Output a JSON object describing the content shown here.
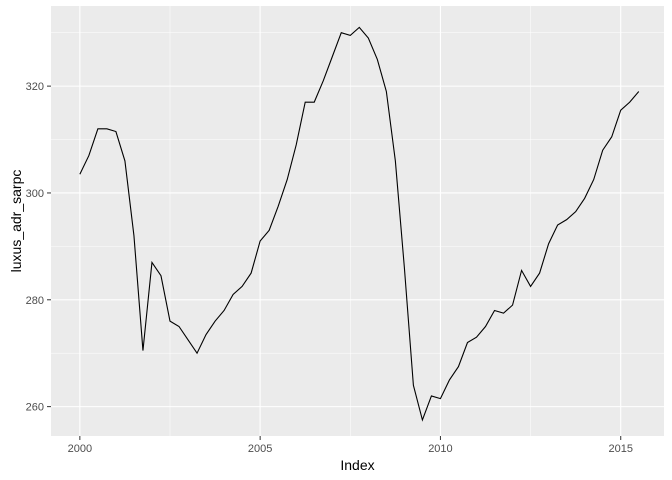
{
  "chart_data": {
    "type": "line",
    "xlabel": "Index",
    "ylabel": "luxus_adr_sarpc",
    "xlim": [
      1999.2,
      2016.2
    ],
    "ylim": [
      254.5,
      335
    ],
    "x_ticks": [
      2000,
      2005,
      2010,
      2015
    ],
    "x_tick_labels": [
      "2000",
      "2005",
      "2010",
      "2015"
    ],
    "y_ticks": [
      260,
      280,
      300,
      320
    ],
    "y_tick_labels": [
      "260",
      "280",
      "300",
      "320"
    ],
    "grid": true,
    "background": "#ebebeb",
    "grid_major_color": "#ffffff",
    "line_color": "#000000",
    "series": [
      {
        "x": [
          2000.0,
          2000.25,
          2000.5,
          2000.75,
          2001.0,
          2001.25,
          2001.5,
          2001.75,
          2002.0,
          2002.25,
          2002.5,
          2002.75,
          2003.0,
          2003.25,
          2003.5,
          2003.75,
          2004.0,
          2004.25,
          2004.5,
          2004.75,
          2005.0,
          2005.25,
          2005.5,
          2005.75,
          2006.0,
          2006.25,
          2006.5,
          2006.75,
          2007.0,
          2007.25,
          2007.5,
          2007.75,
          2008.0,
          2008.25,
          2008.5,
          2008.75,
          2009.0,
          2009.25,
          2009.5,
          2009.75,
          2010.0,
          2010.25,
          2010.5,
          2010.75,
          2011.0,
          2011.25,
          2011.5,
          2011.75,
          2012.0,
          2012.25,
          2012.5,
          2012.75,
          2013.0,
          2013.25,
          2013.5,
          2013.75,
          2014.0,
          2014.25,
          2014.5,
          2014.75,
          2015.0,
          2015.25,
          2015.5
        ],
        "values": [
          303.5,
          307.0,
          312.0,
          312.0,
          311.5,
          306.0,
          292.0,
          270.5,
          287.0,
          284.5,
          276.0,
          275.0,
          272.5,
          270.0,
          273.5,
          276.0,
          278.0,
          281.0,
          282.5,
          285.0,
          291.0,
          293.0,
          297.5,
          302.5,
          309.0,
          317.0,
          317.0,
          321.0,
          325.5,
          330.0,
          329.5,
          331.0,
          329.0,
          325.0,
          319.0,
          306.0,
          286.0,
          264.0,
          257.5,
          262.0,
          261.5,
          265.0,
          267.5,
          272.0,
          273.0,
          275.0,
          278.0,
          277.5,
          279.0,
          285.5,
          282.5,
          285.0,
          290.5,
          294.0,
          295.0,
          296.5,
          299.0,
          302.5,
          308.0,
          310.5,
          315.5,
          317.0,
          319.0
        ]
      }
    ]
  }
}
